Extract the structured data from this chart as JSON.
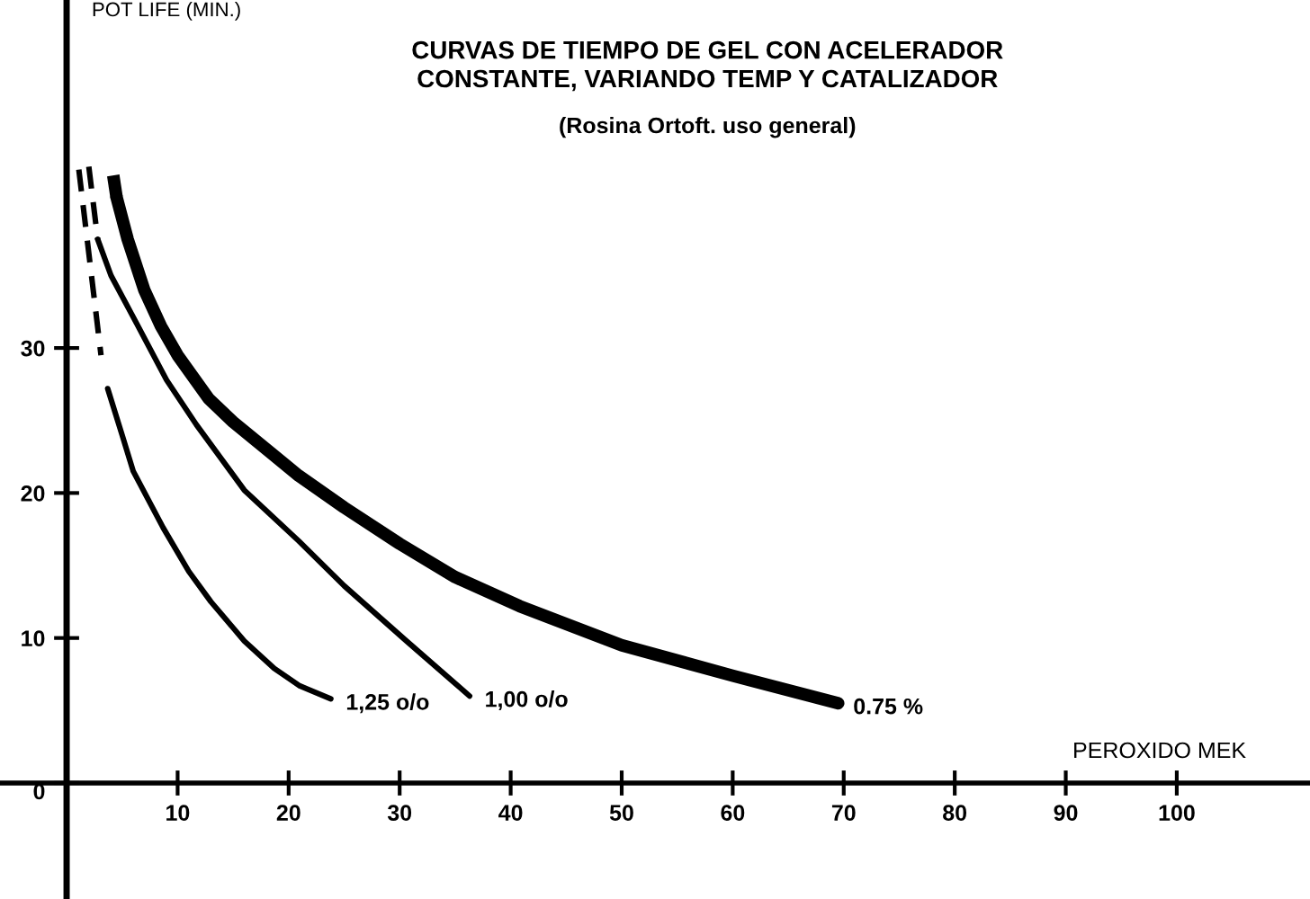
{
  "chart_data": {
    "type": "line",
    "title": "CURVAS DE TIEMPO DE GEL CON ACELERADOR\nCONSTANTE, VARIANDO TEMP Y CATALIZADOR",
    "subtitle": "(Rosina Ortoft. uso general)",
    "xlabel": "PEROXIDO MEK",
    "ylabel": "POT LIFE (MIN.)",
    "xlim": [
      -6,
      112
    ],
    "ylim": [
      -8,
      54
    ],
    "xticks": [
      10,
      20,
      30,
      40,
      50,
      60,
      70,
      80,
      90,
      100
    ],
    "yticks": [
      0,
      10,
      20,
      30
    ],
    "grid": false,
    "legend": false,
    "marker": "none",
    "series": [
      {
        "name": "0.75 %",
        "color": "#000000",
        "line_style": "solid",
        "x": [
          4.5,
          5.5,
          7,
          8.5,
          10,
          12.8,
          15,
          20.9,
          25,
          30,
          35,
          40.8,
          50,
          60,
          69.5
        ],
        "values": [
          40.4,
          37.5,
          34,
          31.5,
          29.5,
          26.5,
          24.9,
          21.2,
          19,
          16.5,
          14.2,
          12.2,
          9.5,
          7.4,
          5.5
        ]
      },
      {
        "name": "1,00 o/o",
        "color": "#000000",
        "line_style": "solid",
        "x": [
          2.8,
          4,
          6.3,
          9,
          11.7,
          16,
          20.9,
          25,
          30.6,
          36.3
        ],
        "values": [
          37.5,
          35,
          31.7,
          27.8,
          24.7,
          20.2,
          16.7,
          13.6,
          9.8,
          6.0
        ]
      },
      {
        "name": "1,25 o/o",
        "color": "#000000",
        "line_style": "solid",
        "x": [
          3.7,
          5,
          6,
          8.7,
          11,
          13,
          16,
          18.7,
          21,
          23.8
        ],
        "values": [
          27.2,
          24,
          21.5,
          17.6,
          14.6,
          12.5,
          9.8,
          7.9,
          6.7,
          5.8
        ]
      },
      {
        "color": "#000000",
        "line_style": "dashed",
        "x": [
          4.2,
          4.5
        ],
        "values": [
          41.9,
          40.4
        ]
      },
      {
        "color": "#000000",
        "line_style": "dashed",
        "x": [
          2.0,
          2.8
        ],
        "values": [
          42.5,
          37.5
        ]
      },
      {
        "color": "#000000",
        "line_style": "dashed",
        "x": [
          1.1,
          3.1
        ],
        "values": [
          42.3,
          29.5
        ]
      }
    ]
  }
}
